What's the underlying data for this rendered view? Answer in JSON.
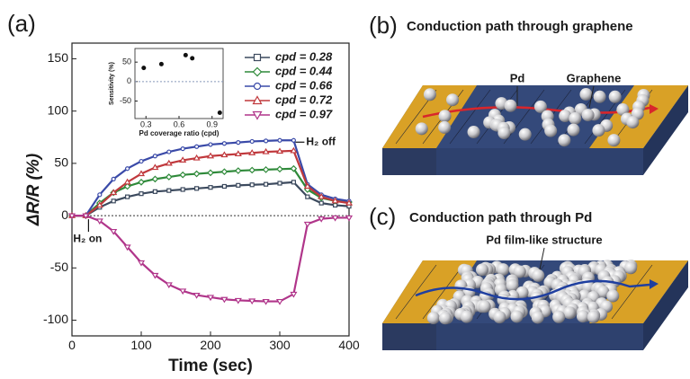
{
  "chart_data": [
    {
      "type": "line",
      "panel_label": "(a)",
      "x_label": "Time (sec)",
      "y_label": "ΔR/R (%)",
      "x": [
        0,
        20,
        40,
        60,
        80,
        100,
        120,
        140,
        160,
        180,
        200,
        220,
        240,
        260,
        280,
        300,
        320,
        340,
        360,
        380,
        400
      ],
      "xlim": [
        0,
        400
      ],
      "xticks": [
        0,
        100,
        200,
        300,
        400
      ],
      "ylim": [
        -115,
        165
      ],
      "yticks": [
        -100,
        -50,
        0,
        50,
        100,
        150
      ],
      "series": [
        {
          "name": "cpd = 0.28",
          "color": "#3c4a5e",
          "marker": "square",
          "values": [
            0,
            0,
            8,
            14,
            18,
            21,
            23,
            24,
            25,
            26,
            27,
            28,
            29,
            29.5,
            30,
            31,
            32,
            18,
            12,
            10,
            9
          ]
        },
        {
          "name": "cpd = 0.44",
          "color": "#2f8a3a",
          "marker": "diamond",
          "values": [
            0,
            0,
            12,
            22,
            28,
            32,
            35,
            37,
            39,
            40,
            41,
            42,
            43,
            43.5,
            44,
            44.5,
            45,
            25,
            17,
            14,
            13
          ]
        },
        {
          "name": "cpd = 0.66",
          "color": "#3a4aa8",
          "marker": "circle",
          "values": [
            0,
            0,
            20,
            35,
            45,
            52,
            57,
            61,
            64,
            66,
            68,
            69,
            70,
            71,
            71.5,
            72,
            72,
            30,
            20,
            16,
            14
          ]
        },
        {
          "name": "cpd = 0.72",
          "color": "#c0383c",
          "marker": "triangle",
          "values": [
            0,
            0,
            10,
            22,
            32,
            40,
            46,
            50,
            53,
            55,
            57,
            58,
            59,
            60,
            61,
            61.5,
            62,
            28,
            18,
            14,
            12
          ]
        },
        {
          "name": "cpd = 0.97",
          "color": "#b0358a",
          "marker": "triangle-down",
          "values": [
            0,
            0,
            -5,
            -15,
            -30,
            -45,
            -57,
            -66,
            -72,
            -76,
            -78,
            -80,
            -81,
            -81.5,
            -82,
            -82,
            -75,
            -8,
            -3,
            -2,
            -2
          ]
        }
      ],
      "annotations": [
        "H₂ off",
        "H₂ on"
      ]
    },
    {
      "type": "scatter",
      "x_label": "Pd coverage ratio (cpd)",
      "y_label": "Sensitivity (%)",
      "x": [
        0.28,
        0.44,
        0.66,
        0.72,
        0.97
      ],
      "values": [
        35,
        45,
        68,
        60,
        -80
      ],
      "color": "#111111",
      "xlim": [
        0.2,
        1.0
      ],
      "xticks": [
        0.3,
        0.6,
        0.9
      ],
      "ylim": [
        -95,
        85
      ],
      "yticks": [
        -50,
        0,
        50
      ]
    }
  ],
  "panels": {
    "b": {
      "label": "(b)",
      "title": "Conduction path through graphene",
      "labels": [
        "Pd",
        "Graphene"
      ]
    },
    "c": {
      "label": "(c)",
      "title": "Conduction path through Pd",
      "labels": [
        "Pd film-like structure"
      ]
    }
  }
}
